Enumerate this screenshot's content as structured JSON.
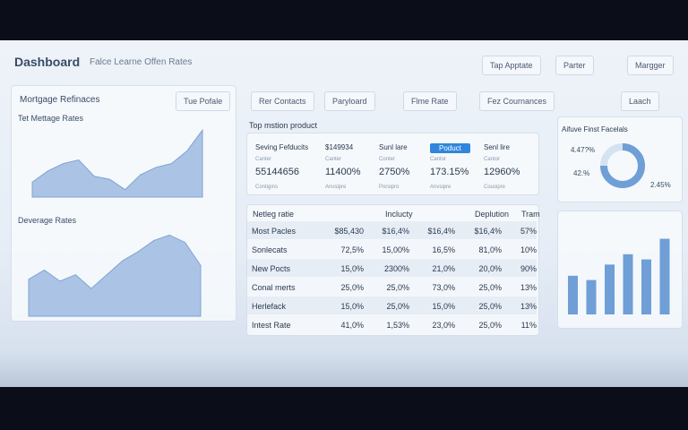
{
  "header": {
    "title": "Dashboard",
    "subtitle": "Falce Learne Offen Rates",
    "buttons": [
      "Tap Apptate",
      "Parter",
      "Margger"
    ]
  },
  "left_panel": {
    "title": "Mortgage Refinaces",
    "dropdown": "Tue Pofale",
    "chart1": {
      "title": "Tet Mettage Rates",
      "values": [
        20,
        35,
        45,
        50,
        28,
        24,
        10,
        30,
        40,
        45,
        62,
        90
      ],
      "ylim": [
        0,
        100
      ]
    },
    "chart2": {
      "title": "Deverage Rates",
      "values": [
        40,
        50,
        38,
        45,
        30,
        45,
        60,
        70,
        82,
        88,
        80,
        55
      ],
      "ylim": [
        0,
        100
      ]
    }
  },
  "toolbar": [
    "Rer Contacts",
    "Paryloard",
    "Flme Rate",
    "Fez Cournances",
    "Laach"
  ],
  "products": {
    "title": "Top mstion product",
    "cards": [
      {
        "label": "Seving Fefducits",
        "sub": "Canter",
        "value": "55144656",
        "foot": "Contigins"
      },
      {
        "label": "$149934",
        "sub": "Canter",
        "value": "11400%",
        "foot": "Anvsipre"
      },
      {
        "label": "Sunl lare",
        "sub": "Conter",
        "value": "2750%",
        "foot": "Porsipro"
      },
      {
        "label": "Poduct",
        "sub": "Cantor",
        "value": "173.15%",
        "foot": "Anvsipre"
      },
      {
        "label": "Senl lire",
        "sub": "Cantor",
        "value": "12960%",
        "foot": "Cousipre"
      }
    ]
  },
  "table": {
    "headers": [
      "Netleg ratie",
      "Inclucty",
      "Deplution",
      "Tram"
    ],
    "rows": [
      [
        "Most Pacles",
        "$85,430",
        "$16,4%",
        "$16,4%",
        "$16,4%",
        "57%"
      ],
      [
        "Sonlecats",
        "72,5%",
        "15,00%",
        "16,5%",
        "81,0%",
        "10%"
      ],
      [
        "New Pocts",
        "15,0%",
        "2300%",
        "21,0%",
        "20,0%",
        "90%"
      ],
      [
        "Conal merts",
        "25,0%",
        "25,0%",
        "73,0%",
        "25,0%",
        "13%"
      ],
      [
        "Herlefack",
        "15,0%",
        "25,0%",
        "15,0%",
        "25,0%",
        "13%"
      ],
      [
        "Intest Rate",
        "41,0%",
        "1,53%",
        "23,0%",
        "25,0%",
        "11%"
      ]
    ]
  },
  "right_panel": {
    "title": "Aifuve Finst Facelals",
    "donut_labels": [
      "4.47?%",
      "42.%",
      "2.45%"
    ],
    "bars": {
      "values": [
        45,
        40,
        58,
        70,
        64,
        88
      ],
      "ylim": [
        0,
        100
      ]
    }
  }
}
